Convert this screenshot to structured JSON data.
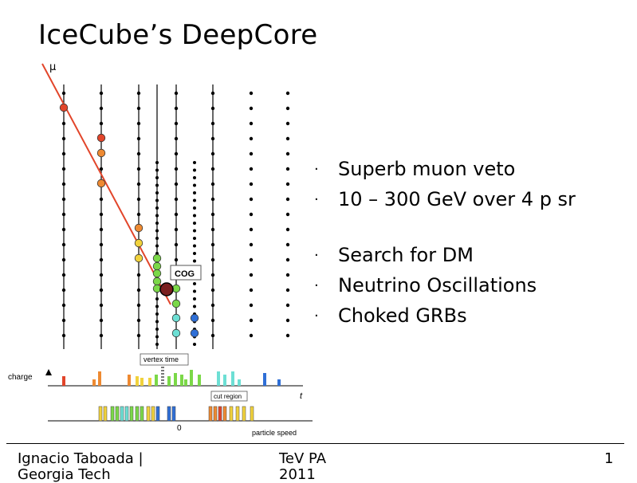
{
  "slide": {
    "title": "IceCube’s DeepCore",
    "bullets_group1": [
      "Superb muon veto",
      "10 – 300 GeV over 4 p sr"
    ],
    "bullets_group2": [
      "Search for DM",
      "Neutrino Oscillations",
      "Choked GRBs"
    ],
    "bullet_glyph": "·"
  },
  "diagram": {
    "mu_label": "μ",
    "cog_label": "COG",
    "vertex_time_label": "vertex time",
    "charge_label": "charge",
    "t_axis_label": "t",
    "cut_region_label": "cut region",
    "zero_label": "0",
    "particle_speed_label": "particle speed",
    "colors": {
      "track": "#e2452a",
      "red": "#e2452a",
      "orange": "#ee8a32",
      "yellow": "#f1d23c",
      "green": "#7bd848",
      "cyan": "#6ddfd4",
      "blue": "#2f6fd6"
    }
  },
  "footer": {
    "left": "Ignacio Taboada | Georgia Tech",
    "middle": "TeV PA 2011",
    "page": "1"
  }
}
